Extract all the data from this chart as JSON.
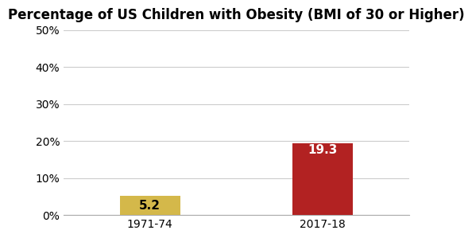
{
  "categories": [
    "1971-74",
    "2017-18"
  ],
  "values": [
    5.2,
    19.3
  ],
  "bar_colors": [
    "#D4B84A",
    "#B22222"
  ],
  "bar_labels": [
    "5.2",
    "19.3"
  ],
  "bar_label_colors": [
    "#000000",
    "#ffffff"
  ],
  "title": "Percentage of US Children with Obesity (BMI of 30 or Higher)",
  "title_fontsize": 12,
  "title_fontweight": "bold",
  "ylim": [
    0,
    50
  ],
  "yticks": [
    0,
    10,
    20,
    30,
    40,
    50
  ],
  "ytick_labels": [
    "0%",
    "10%",
    "20%",
    "30%",
    "40%",
    "50%"
  ],
  "background_color": "#ffffff",
  "grid_color": "#cccccc",
  "bar_width": 0.35,
  "label_fontsize": 11,
  "tick_fontsize": 10
}
